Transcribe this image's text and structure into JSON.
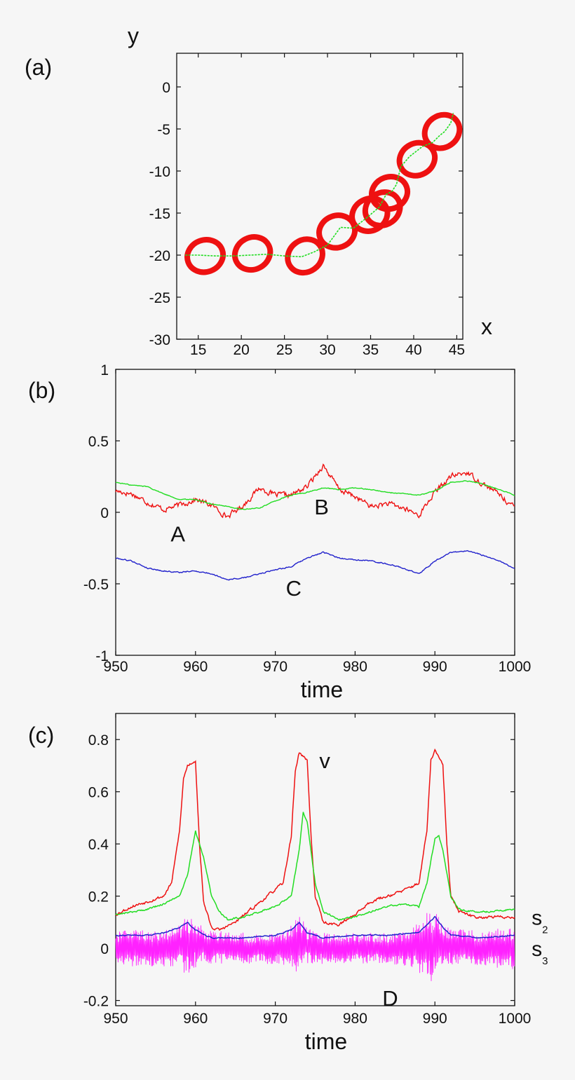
{
  "chart_data": [
    {
      "type": "line",
      "panel_label": "(a)",
      "xlabel": "x",
      "ylabel": "y",
      "xlim": [
        12.5,
        45.7
      ],
      "ylim": [
        -30,
        4
      ],
      "xticks": [
        15,
        20,
        25,
        30,
        35,
        40,
        45
      ],
      "yticks": [
        0,
        -5,
        -10,
        -15,
        -20,
        -25,
        -30
      ],
      "xtick_labels": [
        "15",
        "20",
        "25",
        "30",
        "35",
        "40",
        "45"
      ],
      "ytick_labels": [
        "0",
        "-5",
        "-10",
        "-15",
        "-20",
        "-25",
        "-30"
      ],
      "grid": false,
      "trajectory": {
        "color": "#22dd22",
        "x": [
          13.5,
          15,
          17,
          19,
          21,
          23,
          25,
          27,
          28.5,
          30,
          31.5,
          33,
          34.5,
          36,
          36.8,
          37.5,
          38,
          38.5,
          39.5,
          41,
          42.2,
          43,
          43.6,
          44.3,
          44.6
        ],
        "y": [
          -20.0,
          -20.0,
          -20.1,
          -20.1,
          -20.0,
          -19.9,
          -20.1,
          -20.2,
          -19.6,
          -18.8,
          -16.7,
          -16.8,
          -15.6,
          -14.3,
          -12.8,
          -12.4,
          -11.6,
          -9.5,
          -8.3,
          -7.1,
          -6.6,
          -5.8,
          -5.3,
          -4.3,
          -3.1
        ]
      },
      "cells": {
        "color": "#ee1111",
        "centers": [
          [
            15.8,
            -20.1
          ],
          [
            21.3,
            -19.8
          ],
          [
            27.4,
            -20.1
          ],
          [
            31.1,
            -17.2
          ],
          [
            34.9,
            -15.2
          ],
          [
            36.4,
            -14.5
          ],
          [
            37.2,
            -12.6
          ],
          [
            40.4,
            -8.6
          ],
          [
            43.3,
            -5.3
          ]
        ],
        "radius_x": 2.1,
        "radius_y": 1.9
      }
    },
    {
      "type": "line",
      "panel_label": "(b)",
      "xlabel": "time",
      "ylabel": "",
      "xlim": [
        950,
        1000
      ],
      "ylim": [
        -1,
        1
      ],
      "xticks": [
        950,
        960,
        970,
        980,
        990,
        1000
      ],
      "xtick_labels": [
        "950",
        "960",
        "970",
        "980",
        "990",
        "1000"
      ],
      "yticks": [
        1,
        0.5,
        0,
        -0.5,
        -1
      ],
      "ytick_labels": [
        "1",
        "0.5",
        "0",
        "-0.5",
        "-1"
      ],
      "grid": false,
      "series": [
        {
          "color": "#ee1111",
          "noise": 0.035,
          "x": [
            950,
            952,
            954,
            956,
            958,
            960,
            962,
            964,
            966,
            968,
            970,
            972,
            974,
            976,
            978,
            980,
            982,
            984,
            986,
            988,
            990,
            992,
            994,
            996,
            998,
            1000
          ],
          "values": [
            0.15,
            0.13,
            0.07,
            0.02,
            0.05,
            0.09,
            0.05,
            -0.03,
            0.05,
            0.17,
            0.12,
            0.12,
            0.18,
            0.33,
            0.16,
            0.11,
            0.04,
            0.06,
            0.03,
            -0.02,
            0.14,
            0.25,
            0.28,
            0.2,
            0.13,
            0.03
          ]
        },
        {
          "color": "#22dd22",
          "noise": 0.006,
          "x": [
            950,
            952,
            954,
            956,
            958,
            960,
            962,
            964,
            966,
            968,
            970,
            972,
            974,
            976,
            978,
            980,
            982,
            984,
            986,
            988,
            990,
            992,
            994,
            996,
            998,
            1000
          ],
          "values": [
            0.21,
            0.19,
            0.18,
            0.13,
            0.09,
            0.09,
            0.06,
            0.04,
            0.02,
            0.03,
            0.08,
            0.12,
            0.14,
            0.17,
            0.16,
            0.17,
            0.16,
            0.14,
            0.13,
            0.12,
            0.15,
            0.21,
            0.22,
            0.2,
            0.16,
            0.12
          ]
        },
        {
          "color": "#2222cc",
          "noise": 0.008,
          "x": [
            950,
            952,
            954,
            956,
            958,
            960,
            962,
            964,
            966,
            968,
            970,
            972,
            974,
            976,
            978,
            980,
            982,
            984,
            986,
            988,
            990,
            992,
            994,
            996,
            998,
            1000
          ],
          "values": [
            -0.32,
            -0.34,
            -0.39,
            -0.41,
            -0.42,
            -0.41,
            -0.43,
            -0.47,
            -0.46,
            -0.43,
            -0.4,
            -0.38,
            -0.32,
            -0.28,
            -0.32,
            -0.33,
            -0.34,
            -0.36,
            -0.39,
            -0.43,
            -0.34,
            -0.28,
            -0.27,
            -0.3,
            -0.34,
            -0.39
          ]
        }
      ],
      "annotations": [
        {
          "text": "A",
          "x": 957.8,
          "y": -0.15
        },
        {
          "text": "B",
          "x": 975.8,
          "y": 0.04
        },
        {
          "text": "C",
          "x": 972.3,
          "y": -0.53
        }
      ]
    },
    {
      "type": "line",
      "panel_label": "(c)",
      "xlabel": "time",
      "ylabel": "",
      "xlim": [
        950,
        1000
      ],
      "ylim": [
        -0.22,
        0.9
      ],
      "xticks": [
        950,
        960,
        970,
        980,
        990,
        1000
      ],
      "xtick_labels": [
        "950",
        "960",
        "970",
        "980",
        "990",
        "1000"
      ],
      "yticks": [
        0.8,
        0.6,
        0.4,
        0.2,
        0,
        -0.2
      ],
      "ytick_labels": [
        "0.8",
        "0.6",
        "0.4",
        "0.2",
        "0",
        "-0.2"
      ],
      "grid": false,
      "series": [
        {
          "color": "#ee1111",
          "noise": 0.01,
          "x": [
            950,
            952,
            954,
            956,
            957,
            958,
            958.5,
            959,
            960,
            960.5,
            961,
            962,
            963,
            965,
            967,
            969,
            971,
            972,
            972.5,
            973,
            974,
            974.5,
            975,
            976,
            978,
            980,
            982,
            984,
            986,
            988,
            989,
            989.5,
            990,
            991,
            991.5,
            992,
            993,
            995,
            997,
            1000
          ],
          "values": [
            0.13,
            0.16,
            0.18,
            0.2,
            0.25,
            0.45,
            0.65,
            0.7,
            0.72,
            0.4,
            0.18,
            0.08,
            0.07,
            0.1,
            0.15,
            0.2,
            0.25,
            0.43,
            0.68,
            0.75,
            0.72,
            0.42,
            0.2,
            0.1,
            0.09,
            0.13,
            0.18,
            0.2,
            0.22,
            0.25,
            0.45,
            0.72,
            0.76,
            0.7,
            0.4,
            0.2,
            0.14,
            0.12,
            0.12,
            0.12
          ]
        },
        {
          "color": "#22dd22",
          "noise": 0.006,
          "x": [
            950,
            952,
            954,
            956,
            958,
            959,
            960,
            961,
            962,
            963,
            964,
            966,
            968,
            970,
            972,
            973,
            973.5,
            974,
            975,
            976,
            978,
            980,
            982,
            984,
            986,
            988,
            989,
            990,
            990.5,
            991,
            992,
            993,
            995,
            997,
            1000
          ],
          "values": [
            0.13,
            0.14,
            0.15,
            0.17,
            0.2,
            0.28,
            0.45,
            0.35,
            0.2,
            0.14,
            0.11,
            0.12,
            0.14,
            0.16,
            0.2,
            0.38,
            0.52,
            0.48,
            0.25,
            0.14,
            0.11,
            0.12,
            0.14,
            0.16,
            0.17,
            0.16,
            0.25,
            0.42,
            0.43,
            0.38,
            0.2,
            0.15,
            0.14,
            0.14,
            0.15
          ]
        },
        {
          "color": "#2222cc",
          "noise": 0.004,
          "x": [
            950,
            954,
            956,
            958,
            959,
            960,
            962,
            966,
            970,
            972,
            973,
            974,
            976,
            980,
            984,
            988,
            989,
            990,
            991,
            992,
            996,
            1000
          ],
          "values": [
            0.05,
            0.05,
            0.06,
            0.08,
            0.1,
            0.07,
            0.04,
            0.04,
            0.05,
            0.07,
            0.1,
            0.06,
            0.04,
            0.05,
            0.05,
            0.06,
            0.09,
            0.12,
            0.08,
            0.05,
            0.04,
            0.05
          ]
        },
        {
          "color": "#ff22ff",
          "type": "oscillation",
          "x": [
            950,
            953,
            956,
            958,
            958.8,
            959.5,
            961,
            965,
            969,
            971.5,
            972.5,
            973.2,
            974,
            976,
            980,
            984,
            987,
            988.8,
            989.6,
            990.3,
            991.5,
            995,
            1000
          ],
          "center": [
            0.0,
            0.0,
            0.0,
            0.01,
            0.01,
            0.02,
            0.01,
            0.0,
            0.0,
            0.0,
            0.01,
            0.02,
            0.01,
            0.0,
            0.0,
            0.0,
            0.0,
            0.01,
            0.01,
            0.02,
            0.01,
            0.0,
            0.0
          ],
          "amplitude": [
            0.07,
            0.07,
            0.07,
            0.08,
            0.12,
            0.1,
            0.07,
            0.06,
            0.06,
            0.07,
            0.11,
            0.1,
            0.07,
            0.06,
            0.06,
            0.06,
            0.07,
            0.12,
            0.14,
            0.11,
            0.07,
            0.07,
            0.08
          ]
        }
      ],
      "annotations": [
        {
          "text": "v",
          "x": 976.2,
          "y": 0.72,
          "sub": ""
        },
        {
          "text": "D",
          "x": 984.4,
          "y": -0.19,
          "sub": ""
        },
        {
          "text": "s",
          "x": 1003.0,
          "y": 0.12,
          "sub": "2"
        },
        {
          "text": "s",
          "x": 1003.0,
          "y": 0.0,
          "sub": "3"
        }
      ]
    }
  ]
}
